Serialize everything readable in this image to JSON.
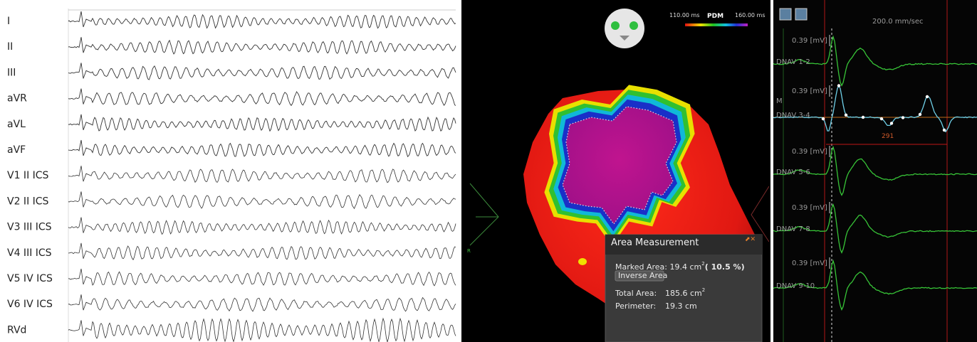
{
  "ecg": {
    "leads": [
      "I",
      "II",
      "III",
      "aVR",
      "aVL",
      "aVF",
      "V1 II ICS",
      "V2 II ICS",
      "V3 III ICS",
      "V4 III ICS",
      "V5 IV ICS",
      "V6 IV ICS",
      "RVd"
    ]
  },
  "map": {
    "legend": {
      "min": "110.00 ms",
      "name": "PDM",
      "max": "160.00 ms"
    },
    "orientation": "R",
    "popup": {
      "title": "Area Measurement",
      "marked_label": "Marked Area:",
      "marked_value": "19.4  cm",
      "marked_sup": "2",
      "marked_percent": "(  10.5 %)",
      "button": "Inverse Area",
      "total_label": "Total Area:",
      "total_value": "185.6 cm",
      "total_sup": "2",
      "perimeter_label": "Perimeter:",
      "perimeter_value": "19.3   cm"
    }
  },
  "electrograms": {
    "sweep": "200.0 mm/sec",
    "marker": "M",
    "interval": "291",
    "channels": [
      {
        "name": "DNAV 1-2",
        "scale": "0.39  [mV]"
      },
      {
        "name": "DNAV 3-4",
        "scale": "0.39  [mV]"
      },
      {
        "name": "DNAV 5-6",
        "scale": "0.39  [mV]"
      },
      {
        "name": "DNAV 7-8",
        "scale": "0.39  [mV]"
      },
      {
        "name": "DNAV 9-10",
        "scale": "0.39  [mV]"
      }
    ]
  }
}
